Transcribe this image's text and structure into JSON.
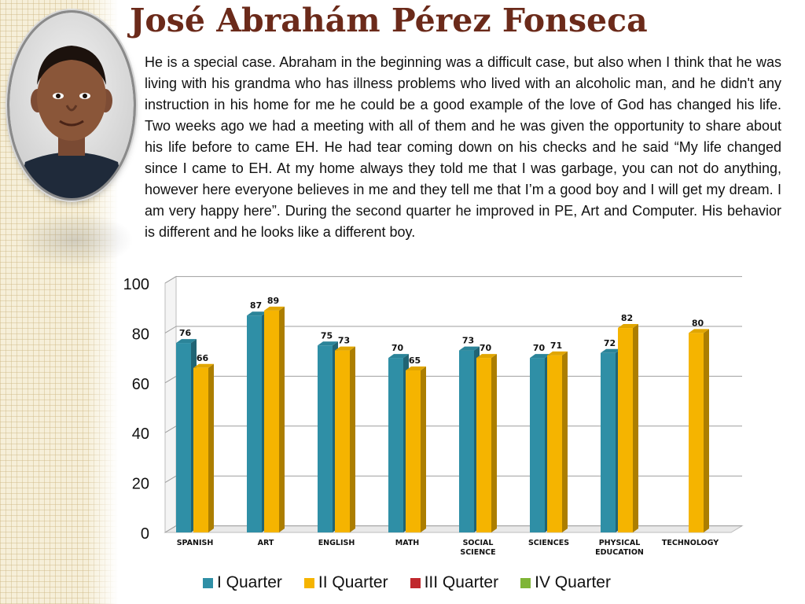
{
  "page": {
    "title": "José Abrahám Pérez Fonseca",
    "paragraph": "He is a special case.  Abraham in the beginning was a difficult case, but also when I think that he was living with his grandma who has illness problems who lived with an alcoholic man,  and he didn't any instruction in his home for me he could be a good example of the love of God has changed his life.  Two weeks ago we had a meeting with all of them and he was given the opportunity to share about his life before to came EH. He had tear coming down on his checks and he said “My life changed since I came to EH.   At my home always they told me that I  was garbage, you can not do anything, however  here everyone believes in me and they tell me that I’m a good boy and I will get my dream. I am very happy here”.   During the second quarter he improved in PE, Art and Computer.  His behavior is different and he looks like a different boy."
  },
  "chart_data": {
    "type": "bar",
    "categories": [
      "SPANISH",
      "ART",
      "ENGLISH",
      "MATH",
      "SOCIAL SCIENCE",
      "SCIENCES",
      "PHYSICAL EDUCATION",
      "TECHNOLOGY"
    ],
    "series": [
      {
        "name": "I Quarter",
        "color": "#2f8fa6",
        "values": [
          76,
          87,
          75,
          70,
          73,
          70,
          72,
          null
        ]
      },
      {
        "name": "II Quarter",
        "color": "#f5b400",
        "values": [
          66,
          89,
          73,
          65,
          70,
          71,
          82,
          80
        ]
      },
      {
        "name": "III Quarter",
        "color": "#c0282d",
        "values": [
          null,
          null,
          null,
          null,
          null,
          null,
          null,
          null
        ]
      },
      {
        "name": "IV Quarter",
        "color": "#7fb536",
        "values": [
          null,
          null,
          null,
          null,
          null,
          null,
          null,
          null
        ]
      }
    ],
    "yticks": [
      0,
      20,
      40,
      60,
      80,
      100
    ],
    "ylim": [
      0,
      100
    ],
    "grid": true,
    "legend_position": "bottom"
  }
}
